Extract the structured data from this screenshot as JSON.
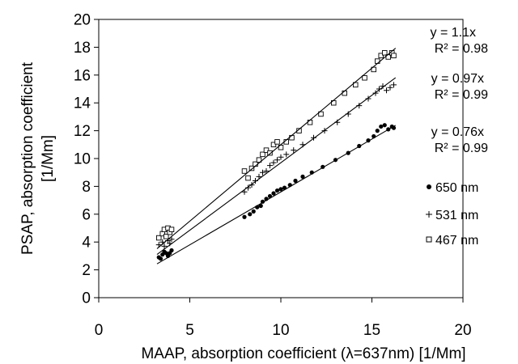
{
  "chart_data": {
    "type": "scatter",
    "xlabel": "MAAP, absorption coefficient (λ=637nm) [1/Mm]",
    "ylabel_line1": "PSAP, absorption coefficient",
    "ylabel_line2": "[1/Mm]",
    "xlim": [
      0,
      20
    ],
    "ylim": [
      0,
      20
    ],
    "x_ticks": [
      0,
      5,
      10,
      15,
      20
    ],
    "y_ticks": [
      0,
      2,
      4,
      6,
      8,
      10,
      12,
      14,
      16,
      18,
      20
    ],
    "x_tick_labels": [
      "0",
      "5",
      "10",
      "15",
      "20"
    ],
    "y_tick_labels": [
      "0",
      "2",
      "4",
      "6",
      "8",
      "10",
      "12",
      "14",
      "16",
      "18",
      "20"
    ],
    "grid": false,
    "legend_position": "right",
    "series": [
      {
        "name": "650 nm",
        "marker": "dot",
        "slope": 0.76,
        "fit_x_range": [
          3.2,
          16.3
        ],
        "equation": "y = 0.76x",
        "r2": "R² = 0.99",
        "points": [
          [
            3.3,
            2.9
          ],
          [
            3.5,
            3.1
          ],
          [
            3.6,
            3.3
          ],
          [
            3.8,
            3.0
          ],
          [
            3.9,
            3.2
          ],
          [
            4.0,
            3.4
          ],
          [
            3.4,
            2.8
          ],
          [
            3.7,
            3.2
          ],
          [
            8.0,
            5.8
          ],
          [
            8.3,
            6.0
          ],
          [
            8.5,
            6.2
          ],
          [
            8.7,
            6.5
          ],
          [
            8.9,
            6.6
          ],
          [
            9.0,
            6.9
          ],
          [
            9.2,
            7.1
          ],
          [
            9.4,
            7.3
          ],
          [
            9.6,
            7.5
          ],
          [
            9.8,
            7.7
          ],
          [
            10.0,
            7.8
          ],
          [
            10.2,
            7.9
          ],
          [
            10.5,
            8.1
          ],
          [
            10.8,
            8.4
          ],
          [
            11.2,
            8.7
          ],
          [
            11.7,
            9.0
          ],
          [
            12.3,
            9.4
          ],
          [
            13.0,
            9.9
          ],
          [
            13.7,
            10.4
          ],
          [
            14.3,
            10.9
          ],
          [
            14.8,
            11.3
          ],
          [
            15.1,
            11.6
          ],
          [
            15.3,
            12.0
          ],
          [
            15.5,
            12.3
          ],
          [
            15.7,
            12.4
          ],
          [
            15.9,
            12.1
          ],
          [
            16.1,
            12.3
          ],
          [
            16.2,
            12.2
          ]
        ]
      },
      {
        "name": "531 nm",
        "marker": "plus",
        "slope": 0.97,
        "fit_x_range": [
          3.2,
          16.3
        ],
        "equation": "y = 0.97x",
        "r2": "R² = 0.99",
        "points": [
          [
            3.3,
            3.8
          ],
          [
            3.5,
            4.0
          ],
          [
            3.6,
            3.7
          ],
          [
            3.8,
            4.1
          ],
          [
            3.9,
            3.9
          ],
          [
            4.0,
            4.2
          ],
          [
            8.0,
            7.6
          ],
          [
            8.2,
            7.9
          ],
          [
            8.4,
            8.1
          ],
          [
            8.6,
            8.4
          ],
          [
            8.8,
            8.7
          ],
          [
            9.0,
            9.0
          ],
          [
            9.2,
            9.1
          ],
          [
            9.4,
            9.5
          ],
          [
            9.6,
            9.7
          ],
          [
            9.8,
            9.9
          ],
          [
            10.0,
            10.1
          ],
          [
            10.3,
            10.3
          ],
          [
            10.7,
            10.6
          ],
          [
            11.2,
            11.0
          ],
          [
            11.8,
            11.5
          ],
          [
            12.4,
            12.0
          ],
          [
            13.1,
            12.6
          ],
          [
            13.7,
            13.2
          ],
          [
            14.3,
            13.8
          ],
          [
            14.8,
            14.3
          ],
          [
            15.2,
            14.7
          ],
          [
            15.4,
            15.0
          ],
          [
            15.6,
            15.2
          ],
          [
            15.8,
            14.9
          ],
          [
            16.0,
            15.1
          ],
          [
            16.2,
            15.3
          ]
        ]
      },
      {
        "name": "467 nm",
        "marker": "square",
        "slope": 1.1,
        "fit_x_range": [
          3.2,
          16.3
        ],
        "equation": "y = 1.1x",
        "r2": "R² = 0.98",
        "points": [
          [
            3.3,
            4.3
          ],
          [
            3.5,
            4.6
          ],
          [
            3.6,
            4.9
          ],
          [
            3.7,
            4.4
          ],
          [
            3.8,
            5.0
          ],
          [
            3.9,
            4.7
          ],
          [
            4.0,
            4.9
          ],
          [
            8.0,
            9.1
          ],
          [
            8.2,
            8.6
          ],
          [
            8.4,
            9.3
          ],
          [
            8.6,
            9.6
          ],
          [
            8.8,
            9.9
          ],
          [
            9.0,
            10.3
          ],
          [
            9.2,
            10.6
          ],
          [
            9.4,
            10.4
          ],
          [
            9.6,
            11.0
          ],
          [
            9.8,
            11.2
          ],
          [
            10.0,
            10.8
          ],
          [
            10.3,
            11.2
          ],
          [
            10.6,
            11.5
          ],
          [
            11.0,
            12.0
          ],
          [
            11.6,
            12.6
          ],
          [
            12.2,
            13.2
          ],
          [
            12.9,
            14.0
          ],
          [
            13.5,
            14.7
          ],
          [
            14.1,
            15.3
          ],
          [
            14.6,
            15.8
          ],
          [
            15.1,
            16.4
          ],
          [
            15.3,
            17.0
          ],
          [
            15.5,
            17.4
          ],
          [
            15.7,
            17.6
          ],
          [
            15.9,
            17.3
          ],
          [
            16.1,
            17.6
          ],
          [
            16.2,
            17.4
          ]
        ]
      }
    ]
  }
}
